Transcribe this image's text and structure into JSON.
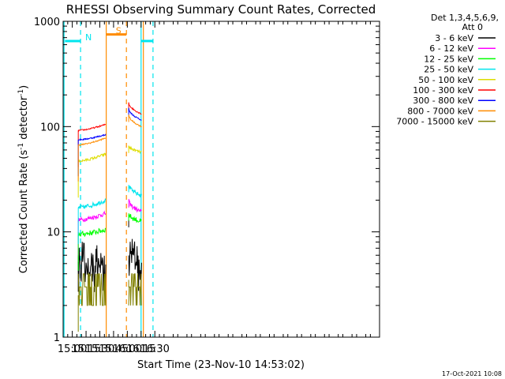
{
  "header": {
    "title": "RHESSI Observing Summary Count Rates, Corrected",
    "detectors": "Det 1,3,4,5,6,9,",
    "attenuator": "Att 0"
  },
  "footer": {
    "date_stamp": "17-Oct-2021 10:08"
  },
  "colors": {
    "night": "#00e5ee",
    "saa": "#ff8c00",
    "axis": "#000000"
  },
  "chart_data": {
    "type": "line",
    "title": "RHESSI Observing Summary Count Rates, Corrected",
    "xlabel": "Start Time (23-Nov-10 14:53:02)",
    "ylabel_main": "Corrected Count Rate (s",
    "ylabel_sup1": "-1",
    "ylabel_mid": " detector",
    "ylabel_sup2": "-1",
    "ylabel_end": ")",
    "x_unit": "minutes of day (UT), 23-Nov-2010",
    "xlim": [
      890,
      1235
    ],
    "ylim": [
      1,
      1000
    ],
    "yscale": "log",
    "x_ticks": [
      {
        "v": 900,
        "label": "15:00"
      },
      {
        "v": 915,
        "label": "15:15"
      },
      {
        "v": 930,
        "label": "15:30"
      },
      {
        "v": 945,
        "label": "15:45"
      },
      {
        "v": 960,
        "label": "16:00"
      },
      {
        "v": 975,
        "label": "16:15"
      },
      {
        "v": 990,
        "label": "16:30"
      }
    ],
    "y_ticks": [
      {
        "v": 1,
        "label": "1"
      },
      {
        "v": 10,
        "label": "10"
      },
      {
        "v": 100,
        "label": "100"
      },
      {
        "v": 1000,
        "label": "1000"
      }
    ],
    "legend_position": "top-right",
    "segments": [
      [
        906.5,
        936.5
      ],
      [
        961.5,
        975.5
      ]
    ],
    "series": [
      {
        "name": "3 - 6 keV",
        "color": "#000000",
        "start": [
          6.0,
          13.0
        ],
        "end": [
          4.0,
          9.0
        ],
        "noise": 0.3,
        "steps": [
          3.5,
          4.5,
          5.5
        ],
        "step_range": [
          0.3,
          1.0
        ]
      },
      {
        "name": "6 - 12 keV",
        "color": "#ff00ff",
        "start": [
          13.0,
          20.0
        ],
        "end": [
          15.0,
          15.5
        ],
        "noise": 0.05
      },
      {
        "name": "12 - 25 keV",
        "color": "#00ff00",
        "start": [
          9.5,
          15.0
        ],
        "end": [
          10.5,
          12.5
        ],
        "noise": 0.06
      },
      {
        "name": "25 - 50 keV",
        "color": "#00e5ee",
        "start": [
          17.0,
          28.0
        ],
        "end": [
          20.0,
          22.0
        ],
        "noise": 0.05
      },
      {
        "name": "50 - 100 keV",
        "color": "#dddd00",
        "start": [
          47.0,
          66.0
        ],
        "end": [
          55.0,
          57.0
        ],
        "noise": 0.03
      },
      {
        "name": "100 - 300 keV",
        "color": "#ff0000",
        "start": [
          92.0,
          170.0
        ],
        "end": [
          105.0,
          132.0
        ],
        "noise": 0.015
      },
      {
        "name": "300 - 800 keV",
        "color": "#0000ff",
        "start": [
          75.0,
          150.0
        ],
        "end": [
          84.0,
          115.0
        ],
        "noise": 0.015
      },
      {
        "name": "800 - 7000 keV",
        "color": "#ff8c00",
        "start": [
          67.0,
          130.0
        ],
        "end": [
          78.0,
          100.0
        ],
        "noise": 0.015
      },
      {
        "name": "7000 - 15000 keV",
        "color": "#808000",
        "start": [
          2.5,
          3.5
        ],
        "end": [
          2.5,
          3.5
        ],
        "noise": 0.0,
        "steps": [
          2.0,
          3.0,
          4.0
        ],
        "step_range": [
          0.0,
          1.0
        ]
      }
    ],
    "flags": [
      {
        "label": "N",
        "x_start": 892,
        "x_end": 909,
        "y": 650,
        "color": "#00e5ee"
      },
      {
        "label": "S",
        "x_start": 937,
        "x_end": 959,
        "y": 750,
        "color": "#ff8c00"
      },
      {
        "label": "",
        "x_start": 975,
        "x_end": 988,
        "y": 650,
        "color": "#00e5ee"
      }
    ],
    "vlines": [
      {
        "x": 891,
        "color": "#00e5ee",
        "style": "solid"
      },
      {
        "x": 909,
        "color": "#00e5ee",
        "style": "dashed"
      },
      {
        "x": 937,
        "color": "#ff8c00",
        "style": "solid"
      },
      {
        "x": 959,
        "color": "#ff8c00",
        "style": "dashed"
      },
      {
        "x": 975,
        "color": "#00e5ee",
        "style": "solid"
      },
      {
        "x": 977.5,
        "color": "#ff8c00",
        "style": "solid"
      },
      {
        "x": 988,
        "color": "#00e5ee",
        "style": "dashed"
      }
    ]
  }
}
